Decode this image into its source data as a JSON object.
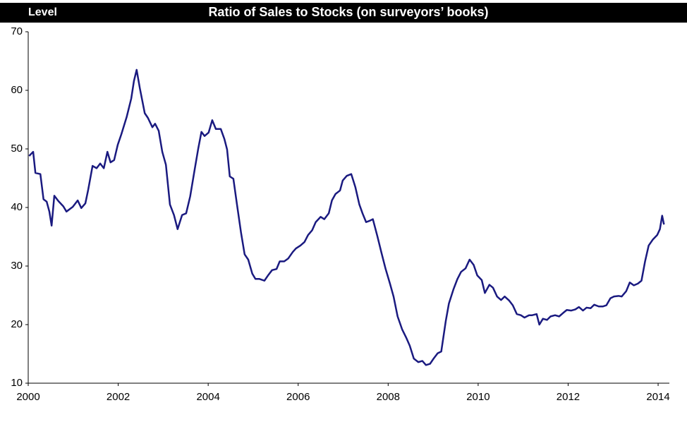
{
  "chart_data": {
    "type": "line",
    "title": "Ratio of Sales to Stocks (on surveyors’ books)",
    "y_label": "Level",
    "xlim": [
      2000,
      2014.25
    ],
    "xticks": [
      2000,
      2002,
      2004,
      2006,
      2008,
      2010,
      2012,
      2014
    ],
    "ylim": [
      10,
      70
    ],
    "yticks": [
      10,
      20,
      30,
      40,
      50,
      60,
      70
    ],
    "grid": false,
    "series": [
      {
        "color": "#1a1a80",
        "x": [
          2000.02,
          2000.11,
          2000.16,
          2000.27,
          2000.34,
          2000.41,
          2000.47,
          2000.52,
          2000.58,
          2000.67,
          2000.78,
          2000.85,
          2000.99,
          2001.1,
          2001.18,
          2001.27,
          2001.33,
          2001.43,
          2001.52,
          2001.6,
          2001.68,
          2001.76,
          2001.83,
          2001.91,
          2001.99,
          2002.07,
          2002.19,
          2002.29,
          2002.35,
          2002.41,
          2002.48,
          2002.59,
          2002.66,
          2002.76,
          2002.82,
          2002.9,
          2002.98,
          2003.06,
          2003.15,
          2003.24,
          2003.32,
          2003.42,
          2003.51,
          2003.6,
          2003.7,
          2003.78,
          2003.85,
          2003.92,
          2004.01,
          2004.09,
          2004.17,
          2004.28,
          2004.36,
          2004.42,
          2004.48,
          2004.56,
          2004.64,
          2004.73,
          2004.81,
          2004.89,
          2004.98,
          2005.05,
          2005.14,
          2005.25,
          2005.33,
          2005.42,
          2005.52,
          2005.59,
          2005.69,
          2005.78,
          2005.88,
          2005.95,
          2006.05,
          2006.14,
          2006.22,
          2006.31,
          2006.39,
          2006.5,
          2006.58,
          2006.68,
          2006.75,
          2006.83,
          2006.93,
          2006.99,
          2007.08,
          2007.18,
          2007.27,
          2007.36,
          2007.43,
          2007.51,
          2007.58,
          2007.66,
          2007.76,
          2007.85,
          2007.94,
          2008.04,
          2008.12,
          2008.21,
          2008.31,
          2008.4,
          2008.48,
          2008.57,
          2008.67,
          2008.76,
          2008.84,
          2008.93,
          2009.01,
          2009.1,
          2009.18,
          2009.28,
          2009.35,
          2009.45,
          2009.54,
          2009.62,
          2009.72,
          2009.81,
          2009.9,
          2009.98,
          2010.08,
          2010.15,
          2010.25,
          2010.33,
          2010.42,
          2010.51,
          2010.59,
          2010.69,
          2010.77,
          2010.86,
          2010.95,
          2011.03,
          2011.13,
          2011.2,
          2011.3,
          2011.36,
          2011.44,
          2011.53,
          2011.61,
          2011.71,
          2011.8,
          2011.89,
          2011.97,
          2012.07,
          2012.16,
          2012.24,
          2012.33,
          2012.41,
          2012.5,
          2012.58,
          2012.68,
          2012.77,
          2012.85,
          2012.94,
          2013.02,
          2013.12,
          2013.19,
          2013.29,
          2013.37,
          2013.46,
          2013.55,
          2013.63,
          2013.71,
          2013.79,
          2013.88,
          2013.98,
          2014.04,
          2014.09,
          2014.13
        ],
        "values": [
          48.8,
          49.5,
          45.9,
          45.7,
          41.4,
          41,
          39.3,
          36.9,
          42,
          41.1,
          40.2,
          39.3,
          40.1,
          41.2,
          39.9,
          40.7,
          42.9,
          47.1,
          46.7,
          47.5,
          46.7,
          49.5,
          47.7,
          48.1,
          50.7,
          52.5,
          55.5,
          58.6,
          61.6,
          63.5,
          60.4,
          56.1,
          55.3,
          53.7,
          54.3,
          53.1,
          49.5,
          47.3,
          40.5,
          38.7,
          36.3,
          38.7,
          39,
          41.9,
          46.5,
          50.1,
          52.9,
          52.2,
          52.8,
          54.9,
          53.4,
          53.4,
          51.7,
          49.9,
          45.3,
          44.9,
          40.5,
          35.7,
          32,
          31.1,
          28.7,
          27.8,
          27.8,
          27.5,
          28.4,
          29.3,
          29.5,
          30.8,
          30.8,
          31.3,
          32.4,
          33,
          33.5,
          34.1,
          35.3,
          36.1,
          37.5,
          38.4,
          38,
          39,
          41.2,
          42.3,
          42.9,
          44.6,
          45.4,
          45.7,
          43.5,
          40.5,
          39,
          37.5,
          37.7,
          38,
          35.1,
          32.3,
          29.6,
          27,
          24.8,
          21.4,
          19.2,
          17.8,
          16.4,
          14.2,
          13.6,
          13.8,
          13.1,
          13.3,
          14.2,
          15.1,
          15.4,
          20.6,
          23.6,
          26,
          27.8,
          29,
          29.6,
          31.1,
          30.2,
          28.4,
          27.6,
          25.4,
          26.8,
          26.3,
          24.8,
          24.2,
          24.8,
          24.1,
          23.3,
          21.8,
          21.6,
          21.2,
          21.6,
          21.6,
          21.8,
          20,
          21,
          20.8,
          21.4,
          21.6,
          21.4,
          22,
          22.5,
          22.4,
          22.6,
          23,
          22.4,
          22.9,
          22.8,
          23.4,
          23.1,
          23.1,
          23.3,
          24.5,
          24.8,
          24.9,
          24.8,
          25.7,
          27.2,
          26.7,
          27,
          27.5,
          30.8,
          33.5,
          34.5,
          35.3,
          36.3,
          38.6,
          37.1
        ]
      }
    ]
  }
}
